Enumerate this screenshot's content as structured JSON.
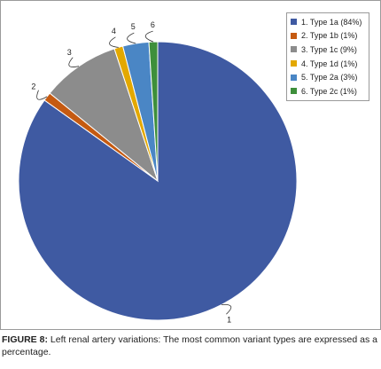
{
  "chart_data": {
    "type": "pie",
    "slices": [
      {
        "label": "1",
        "legend": "1. Type 1a (84%)",
        "value": 84,
        "color": "#3f5aa2"
      },
      {
        "label": "2",
        "legend": "2. Type 1b (1%)",
        "value": 1,
        "color": "#c55a11"
      },
      {
        "label": "3",
        "legend": "3. Type 1c (9%)",
        "value": 9,
        "color": "#8c8c8c"
      },
      {
        "label": "4",
        "legend": "4. Type 1d (1%)",
        "value": 1,
        "color": "#e3a800"
      },
      {
        "label": "5",
        "legend": "5. Type 2a (3%)",
        "value": 3,
        "color": "#4a86c5"
      },
      {
        "label": "6",
        "legend": "6. Type 2c (1%)",
        "value": 1,
        "color": "#3e8f3b"
      }
    ],
    "legend_position": "top-right"
  },
  "caption": {
    "label": "FIGURE 8:",
    "text": " Left renal artery variations: The most common variant types are expressed as a percentage."
  }
}
